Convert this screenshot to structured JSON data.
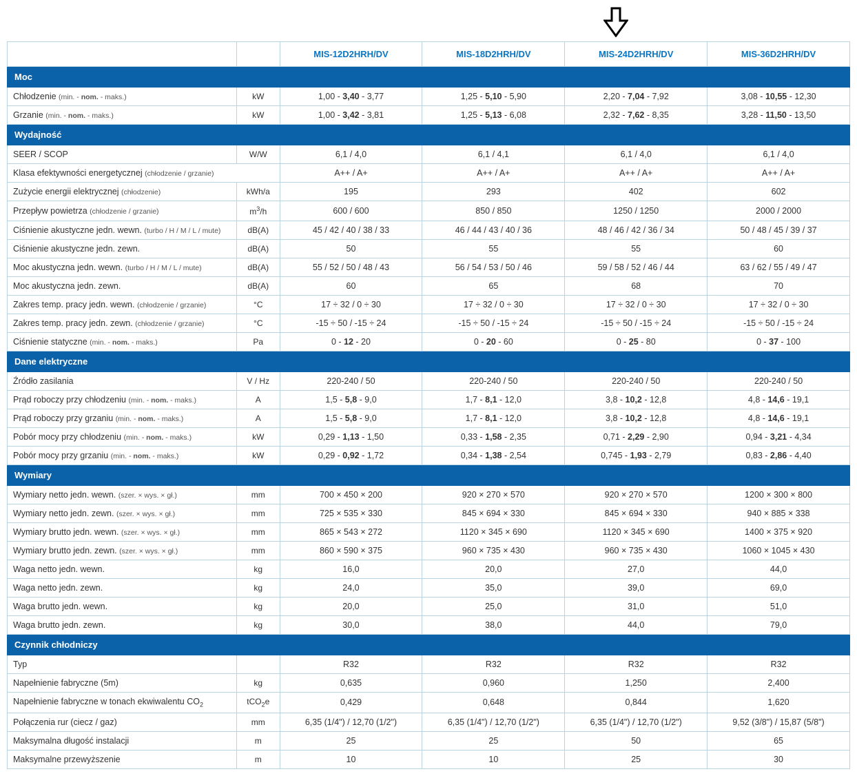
{
  "colors": {
    "header_text": "#0b76c2",
    "section_bg": "#0b62a8",
    "section_text": "#ffffff",
    "border": "#b8d4e3",
    "text": "#333333",
    "subtext": "#555555",
    "background": "#ffffff"
  },
  "arrow_target_column_index": 2,
  "columns": [
    "MIS-12D2HRH/DV",
    "MIS-18D2HRH/DV",
    "MIS-24D2HRH/DV",
    "MIS-36D2HRH/DV"
  ],
  "sections": [
    {
      "title": "Moc",
      "rows": [
        {
          "label": "Chłodzenie",
          "sub": "(min. - <b>nom.</b> - maks.)",
          "unit": "kW",
          "values": [
            "1,00 - <b>3,40</b> - 3,77",
            "1,25 - <b>5,10</b> - 5,90",
            "2,20 - <b>7,04</b> - 7,92",
            "3,08 - <b>10,55</b> - 12,30"
          ]
        },
        {
          "label": "Grzanie",
          "sub": "(min. - <b>nom.</b> - maks.)",
          "unit": "kW",
          "values": [
            "1,00 - <b>3,42</b> - 3,81",
            "1,25 - <b>5,13</b> - 6,08",
            "2,32 - <b>7,62</b> - 8,35",
            "3,28 - <b>11,50</b> - 13,50"
          ]
        }
      ]
    },
    {
      "title": "Wydajność",
      "rows": [
        {
          "label": "SEER / SCOP",
          "sub": "",
          "unit": "W/W",
          "values": [
            "6,1 / 4,0",
            "6,1 / 4,1",
            "6,1 / 4,0",
            "6,1 / 4,0"
          ]
        },
        {
          "label": "Klasa efektywności energetycznej",
          "sub": "(chłodzenie / grzanie)",
          "unit": "",
          "span_unit": true,
          "values": [
            "A++ / A+",
            "A++ / A+",
            "A++ / A+",
            "A++ / A+"
          ]
        },
        {
          "label": "Zużycie energii elektrycznej",
          "sub": "(chłodzenie)",
          "unit": "kWh/a",
          "values": [
            "195",
            "293",
            "402",
            "602"
          ]
        },
        {
          "label": "Przepływ powietrza",
          "sub": "(chłodzenie / grzanie)",
          "unit": "m<sup>3</sup>/h",
          "values": [
            "600 / 600",
            "850 / 850",
            "1250 / 1250",
            "2000 / 2000"
          ]
        },
        {
          "label": "Ciśnienie akustyczne jedn. wewn.",
          "sub": "(turbo / H / M / L / mute)",
          "unit": "dB(A)",
          "values": [
            "45 / 42 / 40 / 38 / 33",
            "46 / 44 / 43 / 40 / 36",
            "48 / 46 / 42 / 36 / 34",
            "50 / 48 / 45 / 39 / 37"
          ]
        },
        {
          "label": "Ciśnienie akustyczne jedn. zewn.",
          "sub": "",
          "unit": "dB(A)",
          "values": [
            "50",
            "55",
            "55",
            "60"
          ]
        },
        {
          "label": "Moc akustyczna jedn. wewn.",
          "sub": "(turbo / H / M / L / mute)",
          "unit": "dB(A)",
          "values": [
            "55 / 52 / 50 / 48 / 43",
            "56 / 54 / 53 / 50 / 46",
            "59 / 58 / 52 / 46 / 44",
            "63 / 62 / 55 / 49 / 47"
          ]
        },
        {
          "label": "Moc akustyczna jedn. zewn.",
          "sub": "",
          "unit": "dB(A)",
          "values": [
            "60",
            "65",
            "68",
            "70"
          ]
        },
        {
          "label": "Zakres temp. pracy jedn. wewn.",
          "sub": "(chłodzenie / grzanie)",
          "unit": "°C",
          "values": [
            "17 ÷ 32 / 0 ÷ 30",
            "17 ÷ 32 / 0 ÷ 30",
            "17 ÷ 32 / 0 ÷ 30",
            "17 ÷ 32 / 0 ÷ 30"
          ]
        },
        {
          "label": "Zakres temp. pracy jedn. zewn.",
          "sub": "(chłodzenie / grzanie)",
          "unit": "°C",
          "values": [
            "-15 ÷ 50 / -15 ÷ 24",
            "-15 ÷ 50 / -15 ÷ 24",
            "-15 ÷ 50 / -15 ÷ 24",
            "-15 ÷ 50 / -15 ÷ 24"
          ]
        },
        {
          "label": "Ciśnienie statyczne",
          "sub": "(min. - <b>nom.</b> - maks.)",
          "unit": "Pa",
          "values": [
            "0 - <b>12</b> - 20",
            "0 - <b>20</b> - 60",
            "0 - <b>25</b> - 80",
            "0 - <b>37</b> - 100"
          ]
        }
      ]
    },
    {
      "title": "Dane elektryczne",
      "rows": [
        {
          "label": "Źródło zasilania",
          "sub": "",
          "unit": "V / Hz",
          "values": [
            "220-240 / 50",
            "220-240 / 50",
            "220-240 / 50",
            "220-240 / 50"
          ]
        },
        {
          "label": "Prąd roboczy przy chłodzeniu",
          "sub": "(min. - <b>nom.</b> - maks.)",
          "unit": "A",
          "values": [
            "1,5 - <b>5,8</b> - 9,0",
            "1,7 - <b>8,1</b> - 12,0",
            "3,8 - <b>10,2</b> - 12,8",
            "4,8 - <b>14,6</b> - 19,1"
          ]
        },
        {
          "label": "Prąd roboczy przy grzaniu",
          "sub": "(min. - <b>nom.</b> - maks.)",
          "unit": "A",
          "values": [
            "1,5 - <b>5,8</b> - 9,0",
            "1,7 - <b>8,1</b> - 12,0",
            "3,8 - <b>10,2</b> - 12,8",
            "4,8 - <b>14,6</b> - 19,1"
          ]
        },
        {
          "label": "Pobór mocy przy chłodzeniu",
          "sub": "(min. - <b>nom.</b> - maks.)",
          "unit": "kW",
          "values": [
            "0,29 - <b>1,13</b> - 1,50",
            "0,33 - <b>1,58</b> - 2,35",
            "0,71 - <b>2,29</b> - 2,90",
            "0,94 - <b>3,21</b> - 4,34"
          ]
        },
        {
          "label": "Pobór mocy przy grzaniu",
          "sub": "(min. - <b>nom.</b> - maks.)",
          "unit": "kW",
          "values": [
            "0,29 - <b>0,92</b> - 1,72",
            "0,34 - <b>1,38</b> - 2,54",
            "0,745 - <b>1,93</b> - 2,79",
            "0,83 - <b>2,86</b> - 4,40"
          ]
        }
      ]
    },
    {
      "title": "Wymiary",
      "rows": [
        {
          "label": "Wymiary netto jedn. wewn.",
          "sub": "(szer. × wys. × gł.)",
          "unit": "mm",
          "values": [
            "700 × 450 × 200",
            "920 × 270 × 570",
            "920 × 270 × 570",
            "1200 × 300 × 800"
          ]
        },
        {
          "label": "Wymiary netto jedn. zewn.",
          "sub": "(szer. × wys. × gł.)",
          "unit": "mm",
          "values": [
            "725 × 535 × 330",
            "845 × 694 × 330",
            "845 × 694 × 330",
            "940 × 885 × 338"
          ]
        },
        {
          "label": "Wymiary brutto jedn. wewn.",
          "sub": "(szer. × wys. × gł.)",
          "unit": "mm",
          "values": [
            "865 × 543 × 272",
            "1120 × 345 × 690",
            "1120 × 345 × 690",
            "1400 × 375 × 920"
          ]
        },
        {
          "label": "Wymiary brutto jedn. zewn.",
          "sub": "(szer. × wys. × gł.)",
          "unit": "mm",
          "values": [
            "860 × 590 × 375",
            "960 × 735 × 430",
            "960 × 735 × 430",
            "1060 × 1045 × 430"
          ]
        },
        {
          "label": "Waga netto jedn. wewn.",
          "sub": "",
          "unit": "kg",
          "values": [
            "16,0",
            "20,0",
            "27,0",
            "44,0"
          ]
        },
        {
          "label": "Waga netto jedn. zewn.",
          "sub": "",
          "unit": "kg",
          "values": [
            "24,0",
            "35,0",
            "39,0",
            "69,0"
          ]
        },
        {
          "label": "Waga brutto jedn. wewn.",
          "sub": "",
          "unit": "kg",
          "values": [
            "20,0",
            "25,0",
            "31,0",
            "51,0"
          ]
        },
        {
          "label": "Waga brutto jedn. zewn.",
          "sub": "",
          "unit": "kg",
          "values": [
            "30,0",
            "38,0",
            "44,0",
            "79,0"
          ]
        }
      ]
    },
    {
      "title": "Czynnik chłodniczy",
      "rows": [
        {
          "label": "Typ",
          "sub": "",
          "unit": "",
          "values": [
            "R32",
            "R32",
            "R32",
            "R32"
          ]
        },
        {
          "label": "Napełnienie fabryczne (5m)",
          "sub": "",
          "unit": "kg",
          "values": [
            "0,635",
            "0,960",
            "1,250",
            "2,400"
          ]
        },
        {
          "label": "Napełnienie fabryczne w tonach ekwiwalentu CO<sub>2</sub>",
          "sub": "",
          "unit": "tCO<sub>2</sub>e",
          "values": [
            "0,429",
            "0,648",
            "0,844",
            "1,620"
          ]
        },
        {
          "label": "Połączenia rur (ciecz / gaz)",
          "sub": "",
          "unit": "mm",
          "values": [
            "6,35 (1/4\") / 12,70 (1/2\")",
            "6,35 (1/4\") / 12,70 (1/2\")",
            "6,35 (1/4\") / 12,70 (1/2\")",
            "9,52 (3/8\") / 15,87 (5/8\")"
          ]
        },
        {
          "label": "Maksymalna długość instalacji",
          "sub": "",
          "unit": "m",
          "values": [
            "25",
            "25",
            "50",
            "65"
          ]
        },
        {
          "label": "Maksymalne przewyższenie",
          "sub": "",
          "unit": "m",
          "values": [
            "10",
            "10",
            "25",
            "30"
          ]
        }
      ]
    }
  ]
}
